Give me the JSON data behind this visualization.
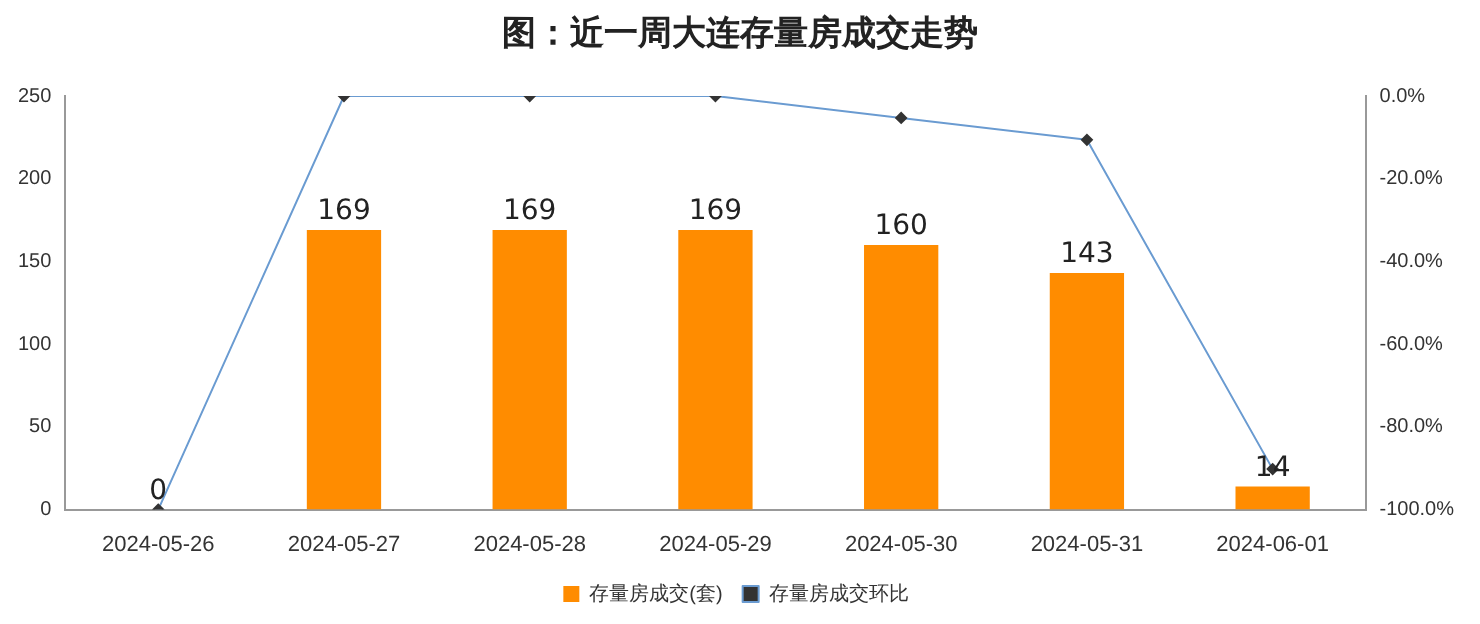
{
  "chart_data": {
    "type": "bar",
    "title": "图：近一周大连存量房成交走势",
    "categories": [
      "2024-05-26",
      "2024-05-27",
      "2024-05-28",
      "2024-05-29",
      "2024-05-30",
      "2024-05-31",
      "2024-06-01"
    ],
    "series": [
      {
        "name": "存量房成交(套)",
        "color": "#ff8c00",
        "values": [
          0,
          169,
          169,
          169,
          160,
          143,
          14
        ],
        "value_labels": [
          "0",
          "169",
          "169",
          "169",
          "160",
          "143",
          "14"
        ]
      },
      {
        "name": "存量房成交环比",
        "type": "line",
        "axis": "y2",
        "color": "#6a9bd1",
        "values": [
          -100,
          0,
          0,
          0,
          -5.3,
          -10.6,
          -90.2
        ]
      }
    ],
    "ylim": [
      0,
      250
    ],
    "yticks": [
      0,
      50,
      100,
      150,
      200,
      250
    ],
    "y2lim": [
      -100,
      0
    ],
    "y2ticks": [
      {
        "value": -100,
        "label": "-100.0%"
      },
      {
        "value": -80,
        "label": "-80.0%"
      },
      {
        "value": -60,
        "label": "-60.0%"
      },
      {
        "value": -40,
        "label": "-40.0%"
      },
      {
        "value": -20,
        "label": "-20.0%"
      },
      {
        "value": 0,
        "label": "0.0%"
      }
    ],
    "grid": false,
    "legend": "bottom",
    "marker": "diamond",
    "line_style": "solid"
  }
}
